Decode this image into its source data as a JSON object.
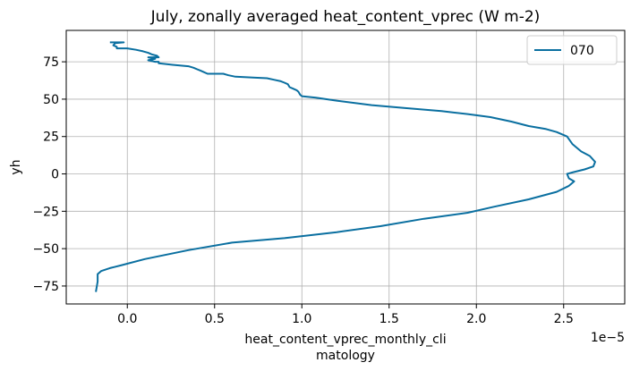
{
  "chart_data": {
    "type": "line",
    "title": "July, zonally averaged heat_content_vprec (W m-2)",
    "xlabel_lines": [
      "heat_content_vprec_monthly_cli",
      "matology"
    ],
    "ylabel": "yh",
    "x_offset_text": "1e−5",
    "xlim": [
      -0.35,
      2.85
    ],
    "ylim": [
      -87,
      96
    ],
    "xticks": [
      0.0,
      0.5,
      1.0,
      1.5,
      2.0,
      2.5
    ],
    "xtick_labels": [
      "0.0",
      "0.5",
      "1.0",
      "1.5",
      "2.0",
      "2.5"
    ],
    "yticks": [
      -75,
      -50,
      -25,
      0,
      25,
      50,
      75
    ],
    "ytick_labels": [
      "−75",
      "−50",
      "−25",
      "0",
      "25",
      "50",
      "75"
    ],
    "grid": true,
    "legend_position": "top-right",
    "series": [
      {
        "name": "070",
        "color": "#0a6fa0",
        "points": [
          [
            -0.1,
            88
          ],
          [
            -0.02,
            88
          ],
          [
            -0.07,
            87.5
          ],
          [
            -0.08,
            86
          ],
          [
            -0.06,
            85
          ],
          [
            -0.06,
            84
          ],
          [
            0.0,
            84
          ],
          [
            0.05,
            83
          ],
          [
            0.09,
            82
          ],
          [
            0.12,
            81
          ],
          [
            0.14,
            80
          ],
          [
            0.17,
            79
          ],
          [
            0.18,
            78
          ],
          [
            0.12,
            78
          ],
          [
            0.16,
            77
          ],
          [
            0.12,
            76
          ],
          [
            0.16,
            75
          ],
          [
            0.18,
            75
          ],
          [
            0.18,
            74
          ],
          [
            0.26,
            73
          ],
          [
            0.35,
            72
          ],
          [
            0.38,
            71
          ],
          [
            0.4,
            70
          ],
          [
            0.42,
            69
          ],
          [
            0.44,
            68
          ],
          [
            0.46,
            67
          ],
          [
            0.55,
            67
          ],
          [
            0.58,
            66
          ],
          [
            0.62,
            65
          ],
          [
            0.72,
            64.5
          ],
          [
            0.8,
            64
          ],
          [
            0.84,
            63
          ],
          [
            0.88,
            62
          ],
          [
            0.9,
            61
          ],
          [
            0.92,
            60
          ],
          [
            0.93,
            58
          ],
          [
            0.95,
            57
          ],
          [
            0.97,
            56
          ],
          [
            0.98,
            55
          ],
          [
            0.99,
            53
          ],
          [
            1.0,
            52
          ],
          [
            1.08,
            51
          ],
          [
            1.2,
            49
          ],
          [
            1.4,
            46
          ],
          [
            1.6,
            44
          ],
          [
            1.8,
            42
          ],
          [
            1.95,
            40
          ],
          [
            2.08,
            38
          ],
          [
            2.2,
            35
          ],
          [
            2.3,
            32
          ],
          [
            2.4,
            30
          ],
          [
            2.46,
            28
          ],
          [
            2.52,
            25
          ],
          [
            2.55,
            20
          ],
          [
            2.6,
            15
          ],
          [
            2.65,
            12
          ],
          [
            2.68,
            8
          ],
          [
            2.67,
            5
          ],
          [
            2.62,
            3
          ],
          [
            2.55,
            1
          ],
          [
            2.52,
            0
          ],
          [
            2.53,
            -3
          ],
          [
            2.56,
            -5
          ],
          [
            2.53,
            -8
          ],
          [
            2.46,
            -12
          ],
          [
            2.3,
            -17
          ],
          [
            2.1,
            -22
          ],
          [
            1.95,
            -26
          ],
          [
            1.7,
            -30
          ],
          [
            1.45,
            -35
          ],
          [
            1.2,
            -39
          ],
          [
            0.9,
            -43
          ],
          [
            0.6,
            -46
          ],
          [
            0.35,
            -51
          ],
          [
            0.1,
            -57
          ],
          [
            -0.03,
            -61
          ],
          [
            -0.1,
            -63
          ],
          [
            -0.15,
            -65
          ],
          [
            -0.17,
            -67
          ],
          [
            -0.17,
            -72
          ],
          [
            -0.18,
            -79
          ]
        ]
      }
    ]
  }
}
